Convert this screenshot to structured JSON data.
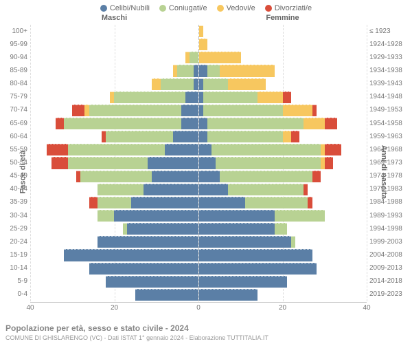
{
  "colors": {
    "celibi": "#5b7fa6",
    "coniugati": "#b8d293",
    "vedovi": "#f7c75f",
    "divorziati": "#d94d3a",
    "grid": "#dddddd",
    "text": "#666666",
    "bg": "#ffffff"
  },
  "legend": [
    {
      "key": "celibi",
      "label": "Celibi/Nubili"
    },
    {
      "key": "coniugati",
      "label": "Coniugati/e"
    },
    {
      "key": "vedovi",
      "label": "Vedovi/e"
    },
    {
      "key": "divorziati",
      "label": "Divorziati/e"
    }
  ],
  "headers": {
    "left": "Maschi",
    "right": "Femmine"
  },
  "y_left_axis_title": "Fasce di età",
  "y_right_axis_title": "Anni di nascita",
  "x_axis": {
    "max": 40,
    "ticks": [
      40,
      20,
      0,
      20,
      40
    ]
  },
  "fontsize": {
    "tick": 10,
    "legend": 11,
    "title": 12,
    "sub": 9
  },
  "title": "Popolazione per età, sesso e stato civile - 2024",
  "subtitle": "COMUNE DI GHISLARENGO (VC) - Dati ISTAT 1° gennaio 2024 - Elaborazione TUTTITALIA.IT",
  "rows": [
    {
      "age": "100+",
      "birth": "≤ 1923",
      "m": {
        "c": 0,
        "g": 0,
        "v": 0,
        "d": 0
      },
      "f": {
        "c": 0,
        "g": 0,
        "v": 1,
        "d": 0
      }
    },
    {
      "age": "95-99",
      "birth": "1924-1928",
      "m": {
        "c": 0,
        "g": 0,
        "v": 0,
        "d": 0
      },
      "f": {
        "c": 0,
        "g": 0,
        "v": 2,
        "d": 0
      }
    },
    {
      "age": "90-94",
      "birth": "1929-1933",
      "m": {
        "c": 0,
        "g": 2,
        "v": 1,
        "d": 0
      },
      "f": {
        "c": 0,
        "g": 0,
        "v": 10,
        "d": 0
      }
    },
    {
      "age": "85-89",
      "birth": "1934-1938",
      "m": {
        "c": 1,
        "g": 4,
        "v": 1,
        "d": 0
      },
      "f": {
        "c": 2,
        "g": 3,
        "v": 13,
        "d": 0
      }
    },
    {
      "age": "80-84",
      "birth": "1939-1943",
      "m": {
        "c": 1,
        "g": 8,
        "v": 2,
        "d": 0
      },
      "f": {
        "c": 1,
        "g": 6,
        "v": 9,
        "d": 0
      }
    },
    {
      "age": "75-79",
      "birth": "1944-1948",
      "m": {
        "c": 3,
        "g": 17,
        "v": 1,
        "d": 0
      },
      "f": {
        "c": 1,
        "g": 13,
        "v": 6,
        "d": 2
      }
    },
    {
      "age": "70-74",
      "birth": "1949-1953",
      "m": {
        "c": 4,
        "g": 22,
        "v": 1,
        "d": 3
      },
      "f": {
        "c": 1,
        "g": 19,
        "v": 7,
        "d": 1
      }
    },
    {
      "age": "65-69",
      "birth": "1954-1958",
      "m": {
        "c": 4,
        "g": 28,
        "v": 0,
        "d": 2
      },
      "f": {
        "c": 2,
        "g": 23,
        "v": 5,
        "d": 3
      }
    },
    {
      "age": "60-64",
      "birth": "1959-1963",
      "m": {
        "c": 6,
        "g": 16,
        "v": 0,
        "d": 1
      },
      "f": {
        "c": 2,
        "g": 18,
        "v": 2,
        "d": 2
      }
    },
    {
      "age": "55-59",
      "birth": "1964-1968",
      "m": {
        "c": 8,
        "g": 23,
        "v": 0,
        "d": 5
      },
      "f": {
        "c": 3,
        "g": 26,
        "v": 1,
        "d": 4
      }
    },
    {
      "age": "50-54",
      "birth": "1969-1973",
      "m": {
        "c": 12,
        "g": 19,
        "v": 0,
        "d": 4
      },
      "f": {
        "c": 4,
        "g": 25,
        "v": 1,
        "d": 2
      }
    },
    {
      "age": "45-49",
      "birth": "1974-1978",
      "m": {
        "c": 11,
        "g": 17,
        "v": 0,
        "d": 1
      },
      "f": {
        "c": 5,
        "g": 22,
        "v": 0,
        "d": 2
      }
    },
    {
      "age": "40-44",
      "birth": "1979-1983",
      "m": {
        "c": 13,
        "g": 11,
        "v": 0,
        "d": 0
      },
      "f": {
        "c": 7,
        "g": 18,
        "v": 0,
        "d": 1
      }
    },
    {
      "age": "35-39",
      "birth": "1984-1988",
      "m": {
        "c": 16,
        "g": 8,
        "v": 0,
        "d": 2
      },
      "f": {
        "c": 11,
        "g": 15,
        "v": 0,
        "d": 1
      }
    },
    {
      "age": "30-34",
      "birth": "1989-1993",
      "m": {
        "c": 20,
        "g": 4,
        "v": 0,
        "d": 0
      },
      "f": {
        "c": 18,
        "g": 12,
        "v": 0,
        "d": 0
      }
    },
    {
      "age": "25-29",
      "birth": "1994-1998",
      "m": {
        "c": 17,
        "g": 1,
        "v": 0,
        "d": 0
      },
      "f": {
        "c": 18,
        "g": 3,
        "v": 0,
        "d": 0
      }
    },
    {
      "age": "20-24",
      "birth": "1999-2003",
      "m": {
        "c": 24,
        "g": 0,
        "v": 0,
        "d": 0
      },
      "f": {
        "c": 22,
        "g": 1,
        "v": 0,
        "d": 0
      }
    },
    {
      "age": "15-19",
      "birth": "2004-2008",
      "m": {
        "c": 32,
        "g": 0,
        "v": 0,
        "d": 0
      },
      "f": {
        "c": 27,
        "g": 0,
        "v": 0,
        "d": 0
      }
    },
    {
      "age": "10-14",
      "birth": "2009-2013",
      "m": {
        "c": 26,
        "g": 0,
        "v": 0,
        "d": 0
      },
      "f": {
        "c": 28,
        "g": 0,
        "v": 0,
        "d": 0
      }
    },
    {
      "age": "5-9",
      "birth": "2014-2018",
      "m": {
        "c": 22,
        "g": 0,
        "v": 0,
        "d": 0
      },
      "f": {
        "c": 21,
        "g": 0,
        "v": 0,
        "d": 0
      }
    },
    {
      "age": "0-4",
      "birth": "2019-2023",
      "m": {
        "c": 15,
        "g": 0,
        "v": 0,
        "d": 0
      },
      "f": {
        "c": 14,
        "g": 0,
        "v": 0,
        "d": 0
      }
    }
  ]
}
